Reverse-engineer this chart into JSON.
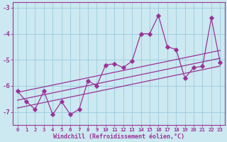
{
  "xlabel": "Windchill (Refroidissement éolien,°C)",
  "x": [
    0,
    1,
    2,
    3,
    4,
    5,
    6,
    7,
    8,
    9,
    10,
    11,
    12,
    13,
    14,
    15,
    16,
    17,
    18,
    19,
    20,
    21,
    22,
    23
  ],
  "y_data": [
    -6.2,
    -6.6,
    -6.9,
    -6.2,
    -7.1,
    -6.6,
    -7.1,
    -6.9,
    -5.8,
    -6.0,
    -5.2,
    -5.15,
    -5.3,
    -5.05,
    -4.0,
    -4.0,
    -3.3,
    -4.5,
    -4.6,
    -5.7,
    -5.3,
    -5.25,
    -3.4,
    -5.1
  ],
  "y_reg": [
    -6.55,
    -6.48,
    -6.41,
    -6.34,
    -6.27,
    -6.2,
    -6.13,
    -6.06,
    -5.99,
    -5.92,
    -5.85,
    -5.78,
    -5.71,
    -5.64,
    -5.57,
    -5.5,
    -5.43,
    -5.36,
    -5.29,
    -5.22,
    -5.15,
    -5.08,
    -5.01,
    -4.94
  ],
  "y_reg_upper": [
    -6.25,
    -6.18,
    -6.11,
    -6.04,
    -5.97,
    -5.9,
    -5.83,
    -5.76,
    -5.69,
    -5.62,
    -5.55,
    -5.48,
    -5.41,
    -5.34,
    -5.27,
    -5.2,
    -5.13,
    -5.06,
    -4.99,
    -4.92,
    -4.85,
    -4.78,
    -4.71,
    -4.64
  ],
  "y_reg_lower": [
    -6.85,
    -6.78,
    -6.71,
    -6.64,
    -6.57,
    -6.5,
    -6.43,
    -6.36,
    -6.29,
    -6.22,
    -6.15,
    -6.08,
    -6.01,
    -5.94,
    -5.87,
    -5.8,
    -5.73,
    -5.66,
    -5.59,
    -5.52,
    -5.45,
    -5.38,
    -5.31,
    -5.24
  ],
  "line_color": "#993399",
  "bg_color": "#cce8f0",
  "grid_color": "#99ccdd",
  "text_color": "#993399",
  "ylim": [
    -7.5,
    -2.8
  ],
  "yticks": [
    -7,
    -6,
    -5,
    -4,
    -3
  ],
  "xlim": [
    -0.5,
    23.5
  ],
  "xtick_labels": [
    "0",
    "1",
    "2",
    "3",
    "4",
    "5",
    "6",
    "7",
    "8",
    "9",
    "10",
    "11",
    "12",
    "13",
    "14",
    "15",
    "16",
    "17",
    "18",
    "19",
    "20",
    "21",
    "22",
    "23"
  ]
}
